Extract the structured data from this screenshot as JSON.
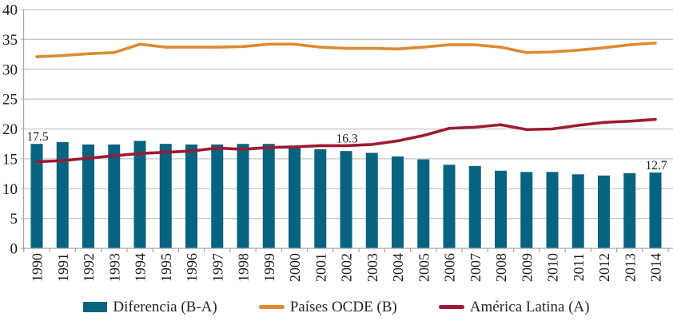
{
  "chart_data": {
    "type": "bar+line",
    "title": "",
    "xlabel": "",
    "ylabel": "",
    "ylim": [
      0,
      40
    ],
    "y_ticks": [
      0,
      5,
      10,
      15,
      20,
      25,
      30,
      35,
      40
    ],
    "grid": true,
    "legend_position": "bottom",
    "categories": [
      "1990",
      "1991",
      "1992",
      "1993",
      "1994",
      "1995",
      "1996",
      "1997",
      "1998",
      "1999",
      "2000",
      "2001",
      "2002",
      "2003",
      "2004",
      "2005",
      "2006",
      "2007",
      "2008",
      "2009",
      "2010",
      "2011",
      "2012",
      "2013",
      "2014"
    ],
    "series": [
      {
        "name": "Diferencia (B-A)",
        "type": "bar",
        "color": "#076380",
        "values": [
          17.5,
          17.8,
          17.4,
          17.4,
          18.0,
          17.5,
          17.4,
          17.4,
          17.5,
          17.5,
          17.2,
          16.6,
          16.3,
          16.0,
          15.4,
          14.9,
          14.0,
          13.8,
          13.0,
          12.8,
          12.8,
          12.4,
          12.2,
          12.6,
          12.7
        ]
      },
      {
        "name": "Países OCDE (B)",
        "type": "line",
        "color": "#DD8A31",
        "values": [
          32.1,
          32.3,
          32.6,
          32.8,
          34.2,
          33.7,
          33.7,
          33.7,
          33.8,
          34.2,
          34.2,
          33.7,
          33.5,
          33.5,
          33.4,
          33.7,
          34.1,
          34.1,
          33.7,
          32.8,
          32.9,
          33.2,
          33.6,
          34.1,
          34.4
        ]
      },
      {
        "name": "América Latina (A)",
        "type": "line",
        "color": "#9E1A33",
        "values": [
          14.5,
          14.7,
          15.1,
          15.5,
          15.9,
          16.1,
          16.3,
          16.8,
          16.6,
          16.9,
          17.0,
          17.2,
          17.2,
          17.4,
          18.0,
          18.9,
          20.1,
          20.3,
          20.7,
          19.9,
          20.0,
          20.6,
          21.1,
          21.3,
          21.6
        ]
      }
    ],
    "annotations": [
      {
        "category": "1990",
        "series": "Diferencia (B-A)",
        "text": "17.5"
      },
      {
        "category": "2002",
        "series": "Diferencia (B-A)",
        "text": "16.3"
      },
      {
        "category": "2014",
        "series": "Diferencia (B-A)",
        "text": "12.7"
      }
    ]
  },
  "colors": {
    "grid": "#C6C6C6",
    "axis": "#A6A6A6",
    "tick_text": "#1A1A1A",
    "annotation_text": "#1A1A1A",
    "legend_text": "#262626",
    "background": "#FFFFFF"
  }
}
